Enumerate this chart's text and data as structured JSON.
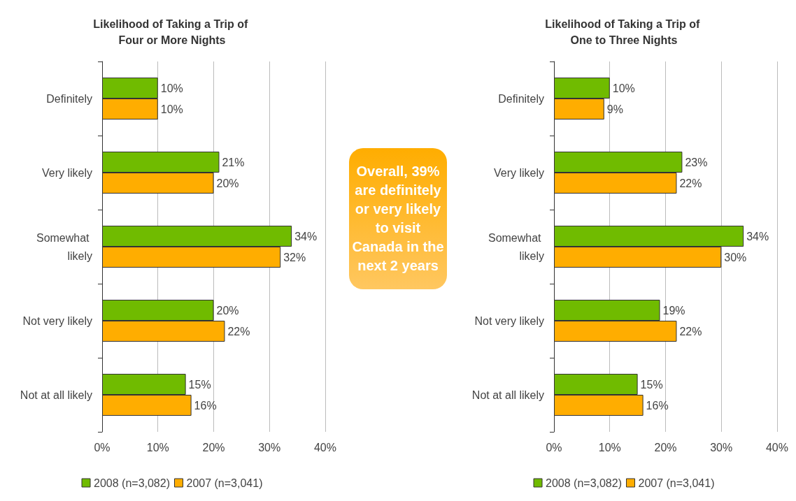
{
  "chart_data": [
    {
      "type": "bar",
      "orientation": "horizontal",
      "title": "Likelihood of Taking a Trip of Four or More Nights",
      "categories": [
        "Definitely",
        "Very likely",
        "Somewhat likely",
        "Not very likely",
        "Not at all likely"
      ],
      "series": [
        {
          "name": "2008 (n=3,082)",
          "color": "#70bb00",
          "values": [
            10,
            21,
            34,
            20,
            15
          ],
          "value_labels": [
            "10%",
            "21%",
            "34%",
            "20%",
            "15%"
          ]
        },
        {
          "name": "2007 (n=3,041)",
          "color": "#ffad00",
          "values": [
            10,
            20,
            32,
            22,
            16
          ],
          "value_labels": [
            "10%",
            "20%",
            "32%",
            "22%",
            "16%"
          ]
        }
      ],
      "xlim": [
        0,
        40
      ],
      "xticks": [
        {
          "value": 0,
          "label": "0%"
        },
        {
          "value": 10,
          "label": "10%"
        },
        {
          "value": 20,
          "label": "20%"
        },
        {
          "value": 30,
          "label": "30%"
        },
        {
          "value": 40,
          "label": "40%"
        }
      ],
      "grid": "x",
      "legend": "bottom"
    },
    {
      "type": "other",
      "annotations": [
        "Overall, 39% are definitely or very likely to visit Canada in the next 2 years"
      ]
    },
    {
      "type": "bar",
      "orientation": "horizontal",
      "title": "Likelihood of Taking a Trip of One to Three Nights",
      "categories": [
        "Definitely",
        "Very likely",
        "Somewhat likely",
        "Not very likely",
        "Not at all likely"
      ],
      "series": [
        {
          "name": "2008 (n=3,082)",
          "color": "#70bb00",
          "values": [
            10,
            23,
            34,
            19,
            15
          ],
          "value_labels": [
            "10%",
            "23%",
            "34%",
            "19%",
            "15%"
          ]
        },
        {
          "name": "2007 (n=3,041)",
          "color": "#ffad00",
          "values": [
            9,
            22,
            30,
            22,
            16
          ],
          "value_labels": [
            "9%",
            "22%",
            "30%",
            "22%",
            "16%"
          ]
        }
      ],
      "xlim": [
        0,
        40
      ],
      "xticks": [
        {
          "value": 0,
          "label": "0%"
        },
        {
          "value": 10,
          "label": "10%"
        },
        {
          "value": 20,
          "label": "20%"
        },
        {
          "value": 30,
          "label": "30%"
        },
        {
          "value": 40,
          "label": "40%"
        }
      ],
      "grid": "x",
      "legend": "bottom"
    }
  ]
}
